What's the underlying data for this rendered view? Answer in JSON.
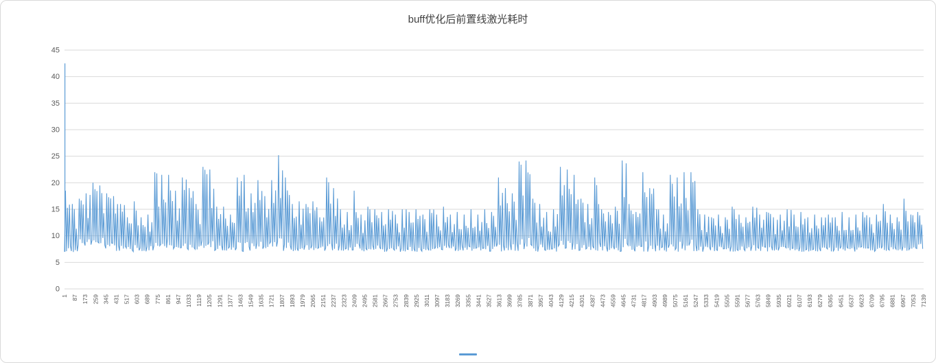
{
  "chart_data": {
    "type": "line",
    "title": "buff优化后前置线激光耗时",
    "xlabel": "",
    "ylabel": "",
    "legend_position": "bottom",
    "grid": true,
    "series_name": "",
    "series_color": "#5B9BD5",
    "gridline_color": "#D9D9D9",
    "text_color": "#595959",
    "ylim": [
      0,
      45
    ],
    "y_tick_step": 5,
    "y_ticks": [
      0,
      5,
      10,
      15,
      20,
      25,
      30,
      35,
      40,
      45
    ],
    "x_first": 1,
    "x_last": 7139,
    "x_tick_step": 86,
    "x_ticks": [
      1,
      87,
      173,
      259,
      345,
      431,
      517,
      603,
      689,
      775,
      861,
      947,
      1033,
      1119,
      1205,
      1291,
      1377,
      1463,
      1549,
      1635,
      1721,
      1807,
      1893,
      1979,
      2065,
      2151,
      2237,
      2323,
      2409,
      2495,
      2581,
      2667,
      2753,
      2839,
      2925,
      3011,
      3097,
      3183,
      3269,
      3355,
      3441,
      3527,
      3613,
      3699,
      3785,
      3871,
      3957,
      4043,
      4129,
      4215,
      4301,
      4387,
      4473,
      4559,
      4645,
      4731,
      4817,
      4903,
      4989,
      5075,
      5161,
      5247,
      5333,
      5419,
      5505,
      5591,
      5677,
      5763,
      5849,
      5935,
      6021,
      6107,
      6193,
      6279,
      6365,
      6451,
      6537,
      6623,
      6709,
      6795,
      6881,
      6967,
      7053,
      7139
    ],
    "first_point_value": 42.5,
    "baseline_band": [
      7,
      15
    ],
    "envelope_note": "Estimated per-bucket [min,max] of the dense series, buckets evenly spanning x=1..7139",
    "envelope_buckets": [
      [
        7,
        18.5
      ],
      [
        6.5,
        16
      ],
      [
        8,
        17
      ],
      [
        8,
        18
      ],
      [
        8.5,
        20
      ],
      [
        8,
        19.5
      ],
      [
        7.5,
        18
      ],
      [
        7,
        17.5
      ],
      [
        7,
        16
      ],
      [
        7,
        13.5
      ],
      [
        7,
        16.5
      ],
      [
        7,
        13.5
      ],
      [
        7,
        14
      ],
      [
        7,
        22
      ],
      [
        7,
        21.5
      ],
      [
        7.5,
        21.5
      ],
      [
        7,
        18.5
      ],
      [
        7,
        21
      ],
      [
        7,
        19
      ],
      [
        7,
        16
      ],
      [
        7,
        23
      ],
      [
        7,
        22.5
      ],
      [
        7,
        15.5
      ],
      [
        7,
        15.5
      ],
      [
        7,
        14
      ],
      [
        7,
        21
      ],
      [
        7,
        21.5
      ],
      [
        7,
        18
      ],
      [
        7.5,
        20.5
      ],
      [
        7,
        17.5
      ],
      [
        7,
        20.5
      ],
      [
        7,
        25.2
      ],
      [
        7,
        21
      ],
      [
        7,
        16
      ],
      [
        7,
        16.5
      ],
      [
        7,
        16
      ],
      [
        7,
        16.5
      ],
      [
        7,
        13.5
      ],
      [
        7,
        21
      ],
      [
        7,
        19
      ],
      [
        7,
        15
      ],
      [
        7,
        14.5
      ],
      [
        7,
        18.5
      ],
      [
        7,
        14
      ],
      [
        7,
        15.5
      ],
      [
        7,
        15
      ],
      [
        7,
        14.5
      ],
      [
        7,
        15
      ],
      [
        7,
        14
      ],
      [
        7,
        15
      ],
      [
        7,
        14.5
      ],
      [
        7,
        15
      ],
      [
        7,
        14
      ],
      [
        7,
        15
      ],
      [
        7,
        14
      ],
      [
        7,
        15.5
      ],
      [
        7,
        14
      ],
      [
        7,
        14.5
      ],
      [
        7,
        14
      ],
      [
        7,
        15
      ],
      [
        7,
        14
      ],
      [
        7,
        15
      ],
      [
        7,
        14.5
      ],
      [
        7,
        21
      ],
      [
        7,
        19
      ],
      [
        7,
        18
      ],
      [
        7,
        24
      ],
      [
        7,
        24.2
      ],
      [
        7,
        17
      ],
      [
        7,
        16
      ],
      [
        7,
        14.5
      ],
      [
        7,
        15
      ],
      [
        7,
        23
      ],
      [
        7,
        22.5
      ],
      [
        7,
        21.5
      ],
      [
        7,
        17
      ],
      [
        7,
        16
      ],
      [
        7,
        21
      ],
      [
        7,
        15
      ],
      [
        7,
        14.5
      ],
      [
        7,
        15.5
      ],
      [
        7,
        24.2
      ],
      [
        7,
        16
      ],
      [
        7,
        14.5
      ],
      [
        7,
        22
      ],
      [
        7,
        19
      ],
      [
        7,
        15
      ],
      [
        7,
        14
      ],
      [
        7,
        21.5
      ],
      [
        7,
        21
      ],
      [
        7,
        22
      ],
      [
        7,
        22
      ],
      [
        7,
        15
      ],
      [
        7,
        14
      ],
      [
        7,
        13.5
      ],
      [
        7,
        14
      ],
      [
        7,
        13.5
      ],
      [
        7,
        15.5
      ],
      [
        7,
        14
      ],
      [
        7,
        13.5
      ],
      [
        7,
        15.5
      ],
      [
        7,
        14
      ],
      [
        7,
        14.5
      ],
      [
        7,
        13.5
      ],
      [
        7,
        14
      ],
      [
        7,
        15
      ],
      [
        7,
        14
      ],
      [
        7,
        14.5
      ],
      [
        7,
        13.5
      ],
      [
        7,
        14
      ],
      [
        7,
        13.5
      ],
      [
        7,
        14
      ],
      [
        7,
        13.5
      ],
      [
        7,
        14.5
      ],
      [
        7,
        13.5
      ],
      [
        7,
        14
      ],
      [
        7,
        14.5
      ],
      [
        7,
        13.5
      ],
      [
        7,
        14
      ],
      [
        7,
        16
      ],
      [
        7,
        14
      ],
      [
        7,
        13.5
      ],
      [
        7,
        17
      ],
      [
        7,
        14
      ],
      [
        7.5,
        14.5
      ]
    ]
  }
}
